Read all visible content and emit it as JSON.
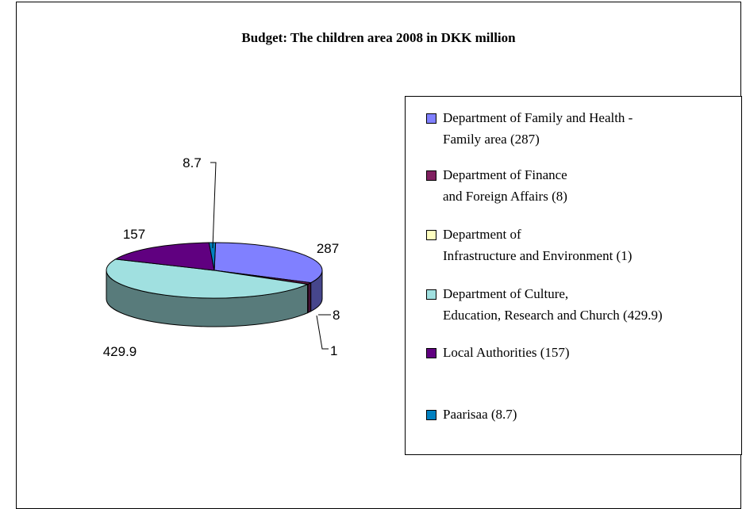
{
  "chart_data": {
    "type": "pie",
    "title": "Budget: The children area 2008 in DKK million",
    "series": [
      {
        "name": "Department of Family and Health - Family area (287)",
        "value": 287,
        "label": "287",
        "color": "#8080FF"
      },
      {
        "name": "Department of Finance and Foreign Affairs (8)",
        "value": 8,
        "label": "8",
        "color": "#802060"
      },
      {
        "name": "Department of Infrastructure and Environment (1)",
        "value": 1,
        "label": "1",
        "color": "#FFFFC0"
      },
      {
        "name": "Department of Culture, Education, Research and Church (429.9)",
        "value": 429.9,
        "label": "429.9",
        "color": "#A0E0E0"
      },
      {
        "name": "Local Authorities (157)",
        "value": 157,
        "label": "157",
        "color": "#600080"
      },
      {
        "name": "Paarisaa (8.7)",
        "value": 8.7,
        "label": "8.7",
        "color": "#0080C0"
      }
    ],
    "legend": {
      "placement": "right",
      "entries": [
        [
          "Department of Family and Health -",
          "Family area (287)"
        ],
        [
          "Department of Finance",
          "and Foreign Affairs (8)"
        ],
        [
          "Department of",
          "Infrastructure and Environment (1)"
        ],
        [
          "Department of Culture,",
          "Education, Research and Church (429.9)"
        ],
        [
          "Local Authorities (157)"
        ],
        [
          "Paarisaa (8.7)"
        ]
      ]
    },
    "style": "3d-pie"
  }
}
